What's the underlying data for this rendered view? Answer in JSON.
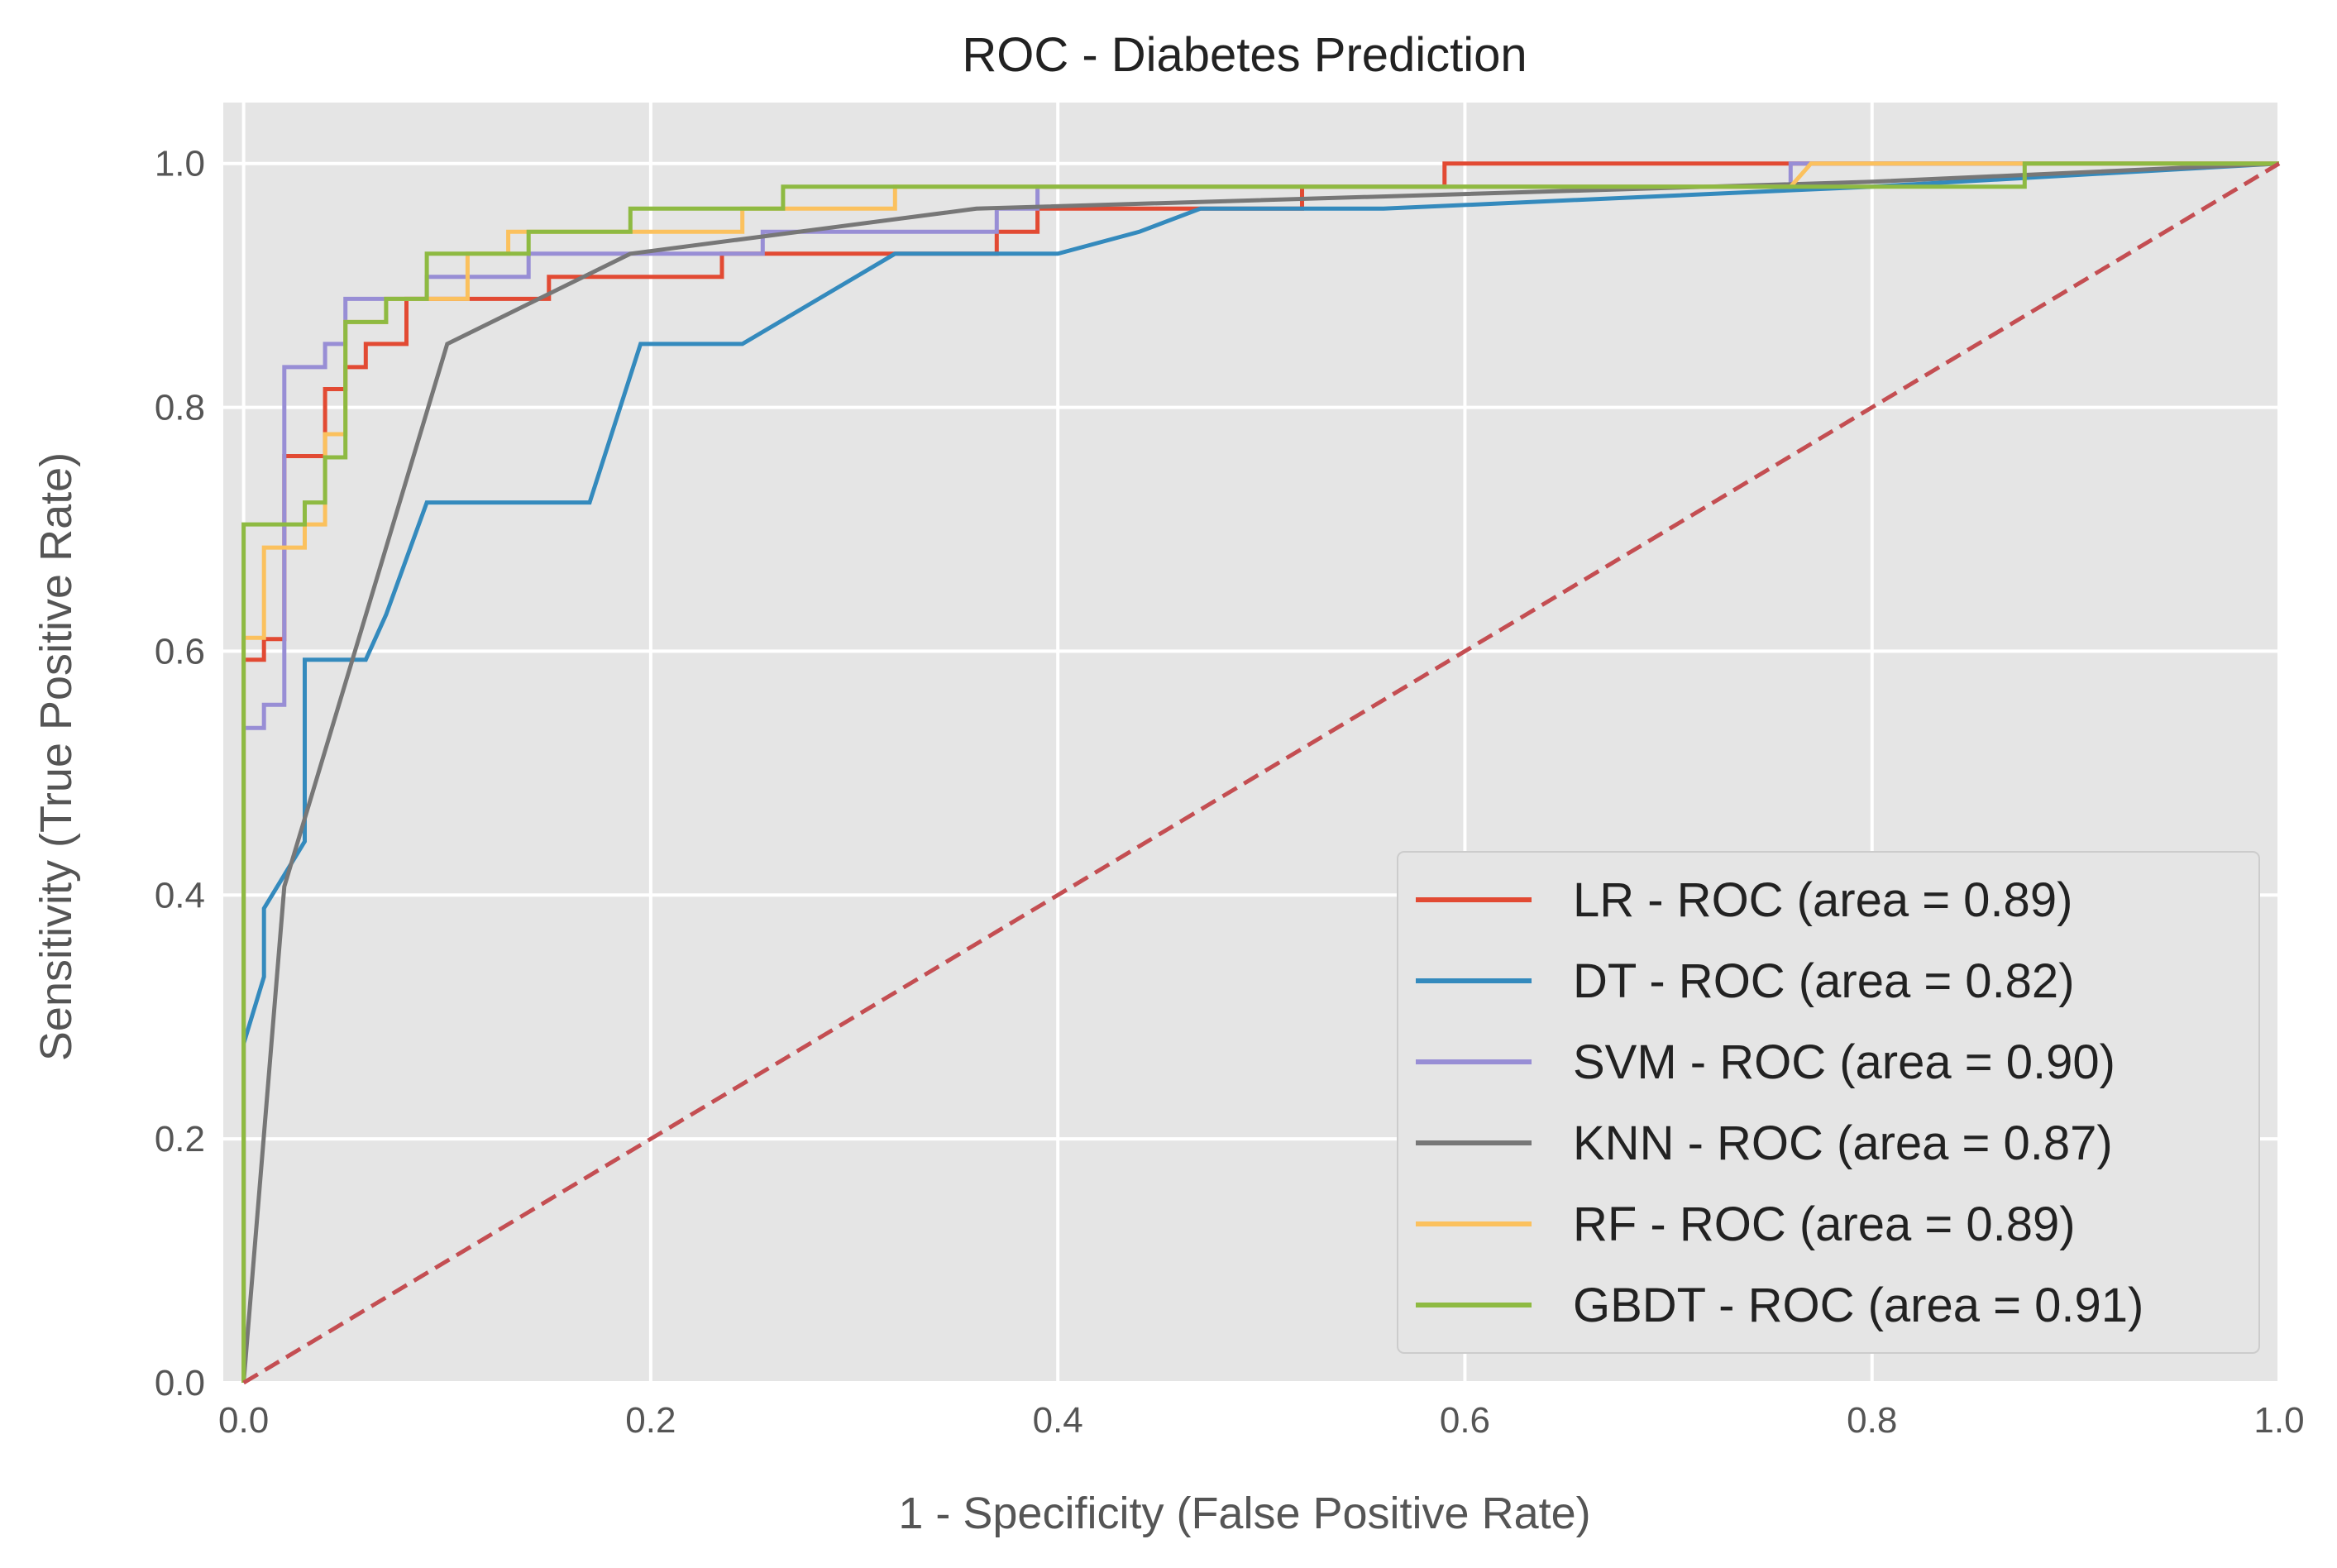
{
  "chart_data": {
    "type": "line",
    "title": "ROC - Diabetes Prediction",
    "xlabel": "1 - Specificity (False Positive Rate)",
    "ylabel": "Sensitivity (True Positive Rate)",
    "xlim": [
      -0.01,
      1.0
    ],
    "ylim": [
      0.0,
      1.05
    ],
    "xticks": [
      0.0,
      0.2,
      0.4,
      0.6,
      0.8,
      1.0
    ],
    "xtick_labels": [
      "0.0",
      "0.2",
      "0.4",
      "0.6",
      "0.8",
      "1.0"
    ],
    "yticks": [
      0.0,
      0.2,
      0.4,
      0.6,
      0.8,
      1.0
    ],
    "ytick_labels": [
      "0.0",
      "0.2",
      "0.4",
      "0.6",
      "0.8",
      "1.0"
    ],
    "grid": true,
    "legend_position": "lower-right",
    "background_color": "#e5e5e5",
    "series": [
      {
        "name": "LR - ROC (area = 0.89)",
        "color": "#E24A33",
        "x": [
          0,
          0,
          0.01,
          0.01,
          0.02,
          0.02,
          0.04,
          0.04,
          0.05,
          0.05,
          0.06,
          0.06,
          0.08,
          0.08,
          0.15,
          0.15,
          0.235,
          0.235,
          0.37,
          0.37,
          0.39,
          0.39,
          0.52,
          0.52,
          0.59,
          0.59,
          0.76,
          0.76,
          1.0
        ],
        "y": [
          0,
          0.593,
          0.593,
          0.61,
          0.61,
          0.76,
          0.76,
          0.815,
          0.815,
          0.833,
          0.833,
          0.852,
          0.852,
          0.889,
          0.889,
          0.907,
          0.907,
          0.926,
          0.926,
          0.944,
          0.944,
          0.963,
          0.963,
          0.981,
          0.981,
          1.0,
          1.0,
          1.0,
          1.0
        ]
      },
      {
        "name": "DT - ROC (area = 0.82)",
        "color": "#348ABD",
        "x": [
          0,
          0,
          0.01,
          0.01,
          0.03,
          0.03,
          0.06,
          0.07,
          0.09,
          0.17,
          0.195,
          0.245,
          0.32,
          0.4,
          0.44,
          0.47,
          0.56,
          0.8,
          1.0
        ],
        "y": [
          0,
          0.278,
          0.333,
          0.389,
          0.444,
          0.593,
          0.593,
          0.63,
          0.722,
          0.722,
          0.852,
          0.852,
          0.926,
          0.926,
          0.944,
          0.963,
          0.963,
          0.981,
          1.0
        ]
      },
      {
        "name": "SVM - ROC (area = 0.90)",
        "color": "#988ED5",
        "x": [
          0,
          0,
          0.01,
          0.01,
          0.02,
          0.02,
          0.04,
          0.04,
          0.05,
          0.05,
          0.09,
          0.09,
          0.14,
          0.14,
          0.255,
          0.255,
          0.37,
          0.37,
          0.39,
          0.39,
          0.76,
          0.76,
          1.0
        ],
        "y": [
          0,
          0.537,
          0.537,
          0.556,
          0.556,
          0.833,
          0.833,
          0.852,
          0.852,
          0.889,
          0.889,
          0.907,
          0.907,
          0.926,
          0.926,
          0.944,
          0.944,
          0.963,
          0.963,
          0.981,
          0.981,
          1.0,
          1.0
        ]
      },
      {
        "name": "KNN - ROC (area = 0.87)",
        "color": "#777777",
        "x": [
          0,
          0.02,
          0.1,
          0.19,
          0.36,
          0.6,
          0.8,
          1.0
        ],
        "y": [
          0,
          0.407,
          0.852,
          0.926,
          0.963,
          0.975,
          0.985,
          1.0
        ]
      },
      {
        "name": "RF - ROC (area = 0.89)",
        "color": "#FBC15E",
        "x": [
          0,
          0,
          0.01,
          0.01,
          0.03,
          0.03,
          0.04,
          0.04,
          0.05,
          0.05,
          0.07,
          0.07,
          0.09,
          0.09,
          0.11,
          0.11,
          0.13,
          0.13,
          0.245,
          0.245,
          0.32,
          0.32,
          0.76,
          0.77,
          1.0
        ],
        "y": [
          0,
          0.611,
          0.611,
          0.685,
          0.685,
          0.704,
          0.704,
          0.778,
          0.778,
          0.87,
          0.87,
          0.889,
          0.889,
          0.889,
          0.889,
          0.926,
          0.926,
          0.944,
          0.944,
          0.963,
          0.963,
          0.981,
          0.981,
          1.0,
          1.0
        ]
      },
      {
        "name": "GBDT - ROC (area = 0.91)",
        "color": "#8EBA42",
        "x": [
          0,
          0,
          0.03,
          0.03,
          0.04,
          0.04,
          0.05,
          0.05,
          0.07,
          0.07,
          0.09,
          0.09,
          0.14,
          0.14,
          0.19,
          0.19,
          0.265,
          0.265,
          0.68,
          0.68,
          0.875,
          0.875,
          1.0
        ],
        "y": [
          0,
          0.704,
          0.704,
          0.722,
          0.722,
          0.759,
          0.759,
          0.87,
          0.87,
          0.889,
          0.889,
          0.926,
          0.926,
          0.944,
          0.944,
          0.963,
          0.963,
          0.981,
          0.981,
          0.981,
          0.981,
          1.0,
          1.0
        ]
      }
    ],
    "reference_line": {
      "color": "#C44E52",
      "style": "dashed",
      "x": [
        0,
        1
      ],
      "y": [
        0,
        1
      ]
    }
  }
}
